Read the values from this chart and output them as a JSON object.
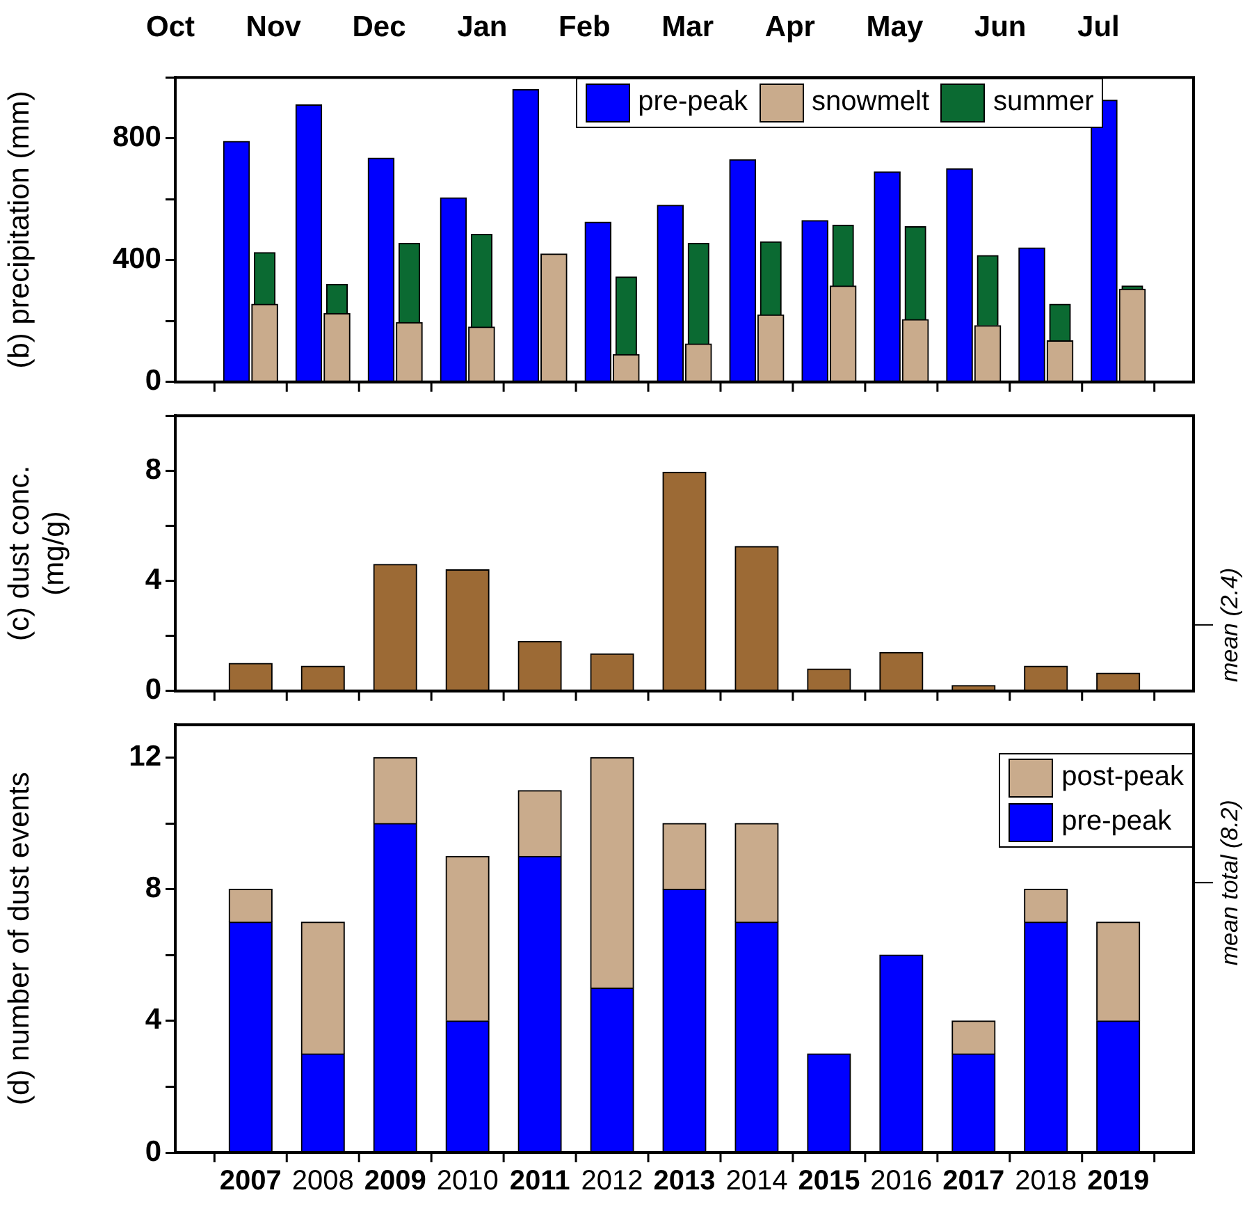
{
  "chart_data": [
    {
      "type": "bar",
      "ylabel": "(b) precipitation (mm)",
      "categories": [
        "2007",
        "2008",
        "2009",
        "2010",
        "2011",
        "2012",
        "2013",
        "2014",
        "2015",
        "2016",
        "2017",
        "2018",
        "2019"
      ],
      "series": [
        {
          "name": "pre-peak",
          "color": "#0000ff",
          "values": [
            790,
            910,
            735,
            605,
            960,
            525,
            580,
            730,
            530,
            690,
            700,
            440,
            925
          ]
        },
        {
          "name": "snowmelt",
          "color": "#c9ab8c",
          "values": [
            255,
            225,
            195,
            180,
            420,
            90,
            125,
            220,
            315,
            205,
            185,
            135,
            305
          ]
        },
        {
          "name": "summer",
          "color": "#0b6a32",
          "values": [
            170,
            95,
            260,
            305,
            0,
            255,
            330,
            240,
            200,
            305,
            230,
            120,
            10
          ],
          "base": [
            255,
            225,
            195,
            180,
            420,
            90,
            125,
            220,
            315,
            205,
            185,
            135,
            305
          ]
        }
      ],
      "ylim": [
        0,
        1000
      ],
      "yticks": [
        0,
        {
          "value": 200,
          "label": null
        },
        400,
        {
          "value": 600,
          "label": null
        },
        800,
        {
          "value": 1000,
          "label": null
        }
      ],
      "tick_labels": "y",
      "legend": "top right",
      "annotations": [
        "Oct",
        "Nov",
        "Dec",
        "Jan",
        "Feb",
        "Mar",
        "Apr",
        "May",
        "Jun",
        "Jul"
      ]
    },
    {
      "type": "bar",
      "ylabel": "(c) dust conc.\n(mg/g)",
      "categories": [
        "2007",
        "2008",
        "2009",
        "2010",
        "2011",
        "2012",
        "2013",
        "2014",
        "2015",
        "2016",
        "2017",
        "2018",
        "2019"
      ],
      "color": "#9c6a35",
      "values": [
        1.0,
        0.9,
        4.6,
        4.4,
        1.8,
        1.35,
        7.95,
        5.25,
        0.8,
        1.4,
        0.2,
        0.9,
        0.65
      ],
      "ylim": [
        0,
        10
      ],
      "yticks": [
        0,
        {
          "value": 2,
          "label": null
        },
        4,
        {
          "value": 6,
          "label": null
        },
        8,
        {
          "value": 10,
          "label": null
        }
      ],
      "tick_labels": "y",
      "ref_lines": [
        {
          "axis": "y",
          "value": 2.4,
          "label": "mean (2.4)"
        }
      ]
    },
    {
      "type": "bar",
      "ylabel": "(d) number of dust events",
      "categories": [
        "2007",
        "2008",
        "2009",
        "2010",
        "2011",
        "2012",
        "2013",
        "2014",
        "2015",
        "2016",
        "2017",
        "2018",
        "2019"
      ],
      "stacked": true,
      "series": [
        {
          "name": "pre-peak",
          "color": "#0000ff",
          "values": [
            7,
            3,
            10,
            4,
            9,
            5,
            8,
            7,
            3,
            6,
            3,
            7,
            4
          ]
        },
        {
          "name": "post-peak",
          "color": "#c9ab8c",
          "values": [
            1,
            4,
            2,
            5,
            2,
            7,
            2,
            3,
            0,
            0,
            1,
            1,
            3
          ]
        }
      ],
      "ylim": [
        0,
        13
      ],
      "yticks": [
        0,
        {
          "value": 2,
          "label": null
        },
        4,
        {
          "value": 6,
          "label": null
        },
        8,
        {
          "value": 10,
          "label": null
        },
        12
      ],
      "legend": "top right",
      "ref_lines": [
        {
          "axis": "y",
          "value": 8.2,
          "label": "mean total (8.2)"
        }
      ]
    }
  ]
}
